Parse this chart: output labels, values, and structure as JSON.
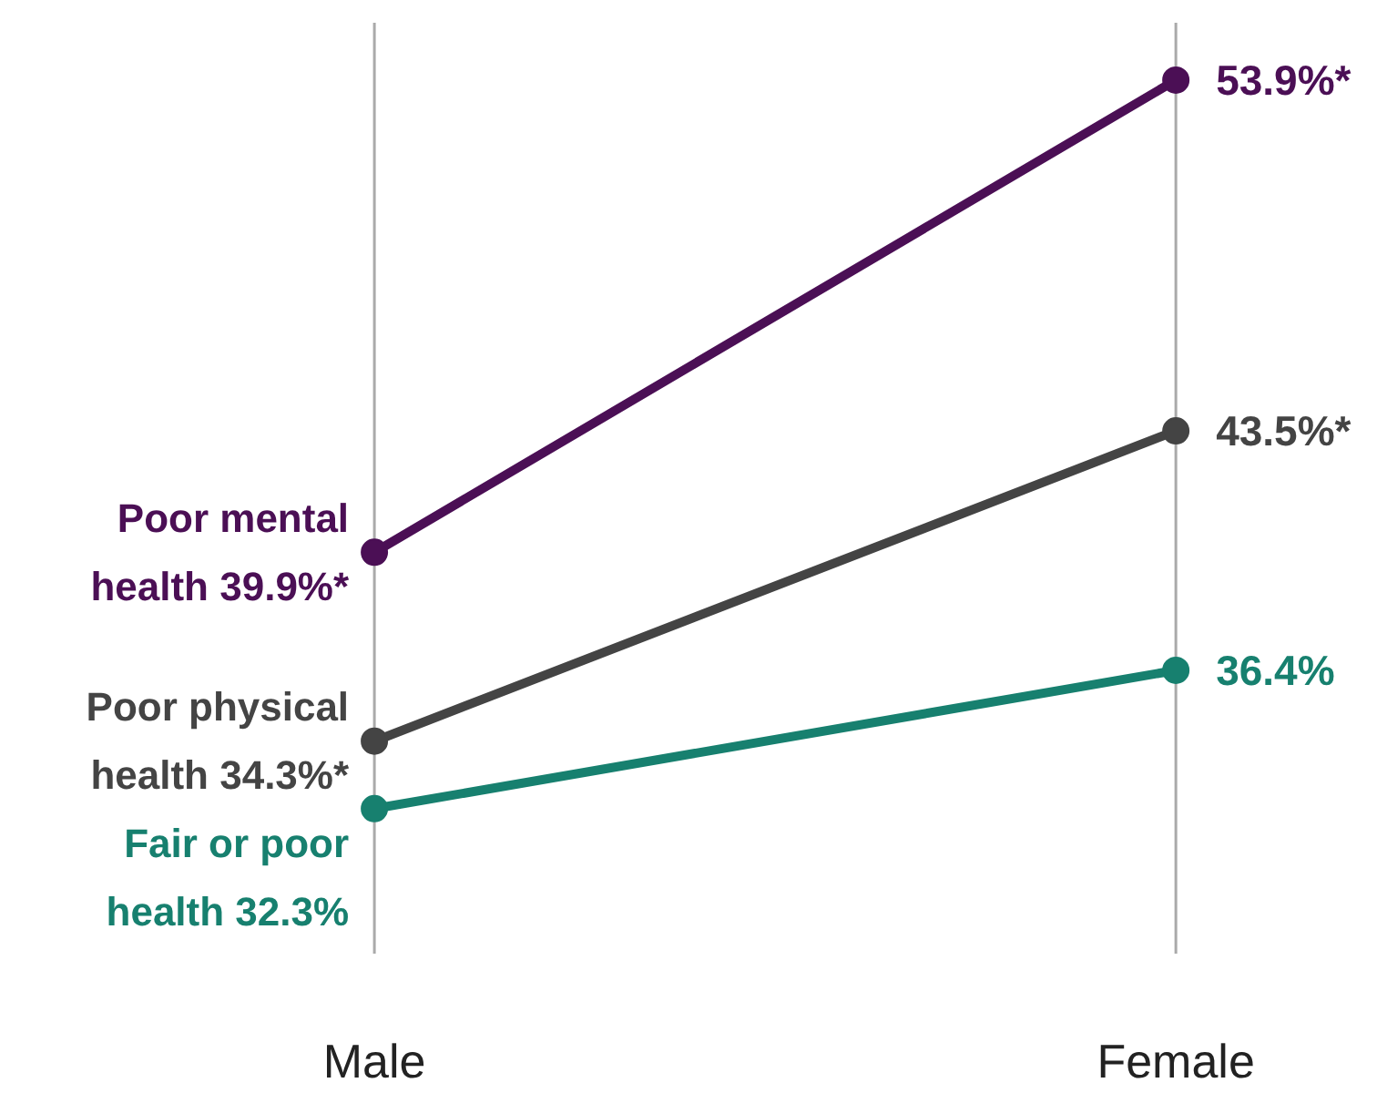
{
  "chart_data": {
    "type": "line",
    "categories": [
      "Male",
      "Female"
    ],
    "ylim": [
      28,
      55.6
    ],
    "grid": "x",
    "marker": "circle",
    "line_style": "solid",
    "series": [
      {
        "name": "Poor mental health",
        "color": "#4b0f55",
        "values": [
          39.9,
          53.9
        ],
        "value_labels": [
          "39.9%*",
          "53.9%*"
        ]
      },
      {
        "name": "Poor physical health",
        "color": "#444444",
        "values": [
          34.3,
          43.5
        ],
        "value_labels": [
          "34.3%*",
          "43.5%*"
        ]
      },
      {
        "name": "Fair or poor health",
        "color": "#17806f",
        "values": [
          32.3,
          36.4
        ],
        "value_labels": [
          "32.3%",
          "36.4%"
        ]
      }
    ]
  }
}
